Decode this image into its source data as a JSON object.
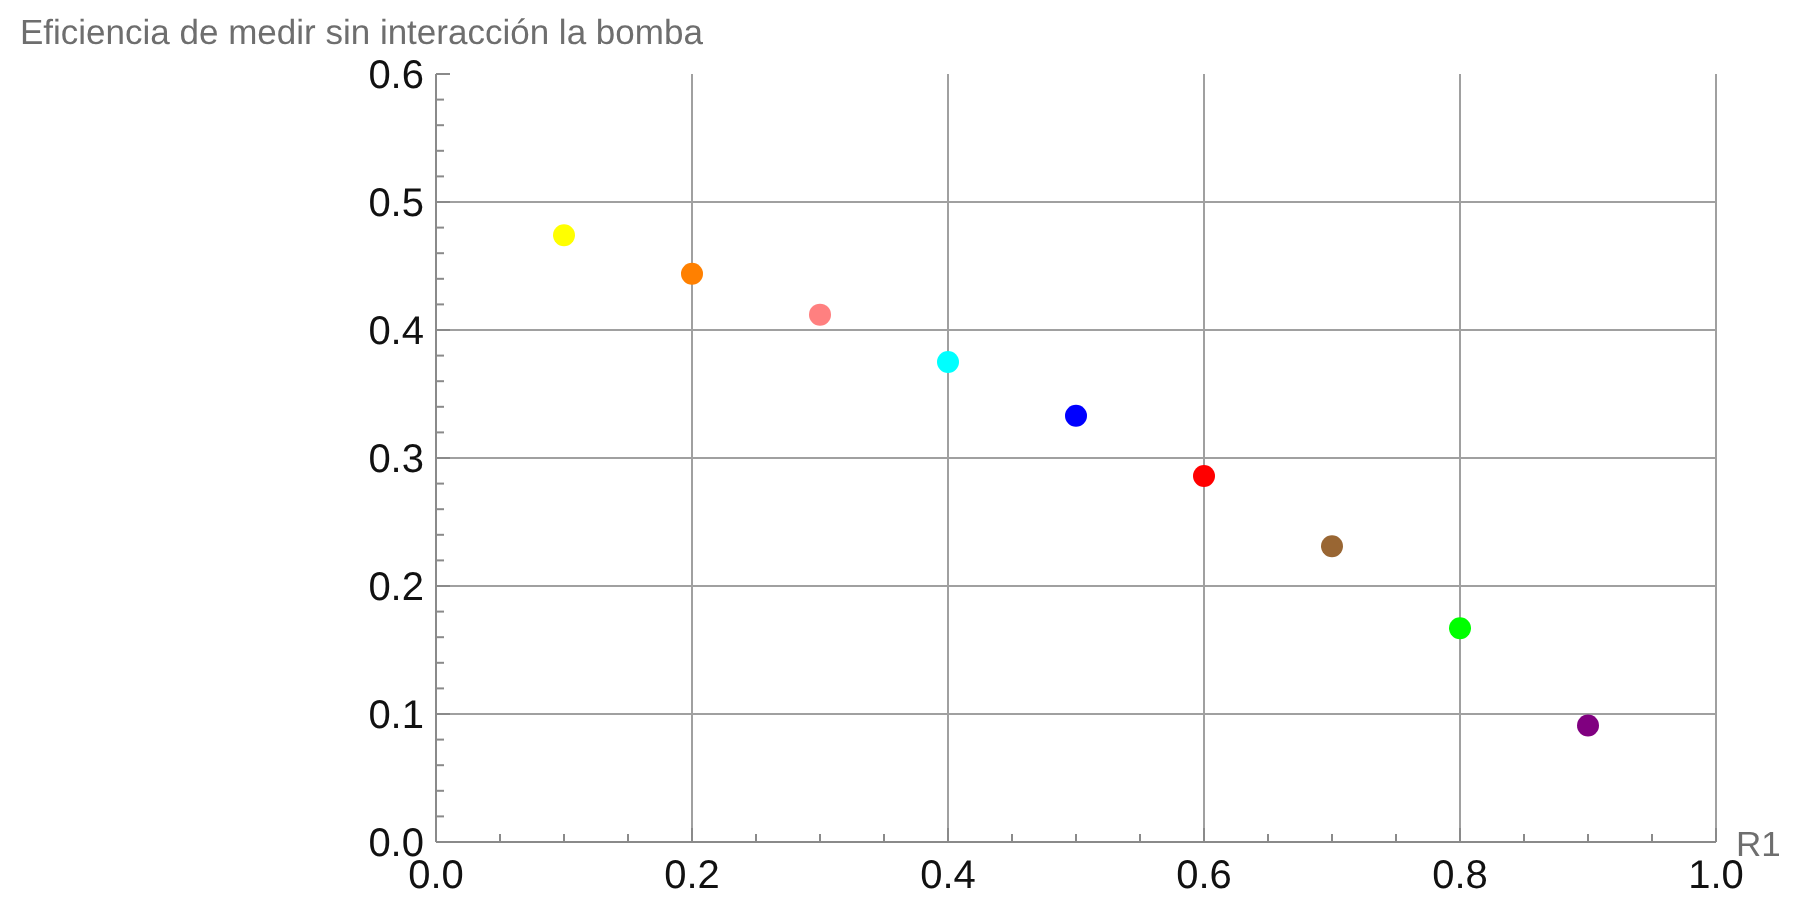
{
  "chart_data": {
    "type": "scatter",
    "xlabel": "R1",
    "ylabel": "Eficiencia de medir sin interacción la bomba",
    "x": [
      0.1,
      0.2,
      0.3,
      0.4,
      0.5,
      0.6,
      0.7,
      0.8,
      0.9
    ],
    "values": [
      0.474,
      0.444,
      0.412,
      0.375,
      0.333,
      0.286,
      0.231,
      0.167,
      0.091
    ],
    "colors": [
      "#ffff00",
      "#ff8000",
      "#ff8080",
      "#00ffff",
      "#0000ff",
      "#ff0000",
      "#996633",
      "#00ff00",
      "#800080"
    ],
    "marker": "circle",
    "grid": true,
    "xlim": [
      0,
      1
    ],
    "ylim": [
      0,
      0.6
    ],
    "xticks": [
      {
        "value": 0,
        "label": "0.0"
      },
      {
        "value": 0.05,
        "label": null
      },
      {
        "value": 0.1,
        "label": null
      },
      {
        "value": 0.15,
        "label": null
      },
      0.2,
      {
        "value": 0.25,
        "label": null
      },
      {
        "value": 0.3,
        "label": null
      },
      {
        "value": 0.35,
        "label": null
      },
      0.4,
      {
        "value": 0.45,
        "label": null
      },
      {
        "value": 0.5,
        "label": null
      },
      {
        "value": 0.55,
        "label": null
      },
      0.6,
      {
        "value": 0.65,
        "label": null
      },
      {
        "value": 0.7,
        "label": null
      },
      {
        "value": 0.75,
        "label": null
      },
      0.8,
      {
        "value": 0.85,
        "label": null
      },
      {
        "value": 0.9,
        "label": null
      },
      {
        "value": 0.95,
        "label": null
      },
      {
        "value": 1,
        "label": "1.0"
      }
    ],
    "yticks": [
      {
        "value": 0,
        "label": "0.0"
      },
      {
        "value": 0.02,
        "label": null
      },
      {
        "value": 0.04,
        "label": null
      },
      {
        "value": 0.06,
        "label": null
      },
      {
        "value": 0.08,
        "label": null
      },
      0.1,
      {
        "value": 0.12,
        "label": null
      },
      {
        "value": 0.14,
        "label": null
      },
      {
        "value": 0.16,
        "label": null
      },
      {
        "value": 0.18,
        "label": null
      },
      0.2,
      {
        "value": 0.22,
        "label": null
      },
      {
        "value": 0.24,
        "label": null
      },
      {
        "value": 0.26,
        "label": null
      },
      {
        "value": 0.28,
        "label": null
      },
      0.3,
      {
        "value": 0.32,
        "label": null
      },
      {
        "value": 0.34,
        "label": null
      },
      {
        "value": 0.36,
        "label": null
      },
      {
        "value": 0.38,
        "label": null
      },
      0.4,
      {
        "value": 0.42,
        "label": null
      },
      {
        "value": 0.44,
        "label": null
      },
      {
        "value": 0.46,
        "label": null
      },
      {
        "value": 0.48,
        "label": null
      },
      0.5,
      {
        "value": 0.52,
        "label": null
      },
      {
        "value": 0.54,
        "label": null
      },
      {
        "value": 0.56,
        "label": null
      },
      {
        "value": 0.58,
        "label": null
      },
      0.6
    ]
  }
}
